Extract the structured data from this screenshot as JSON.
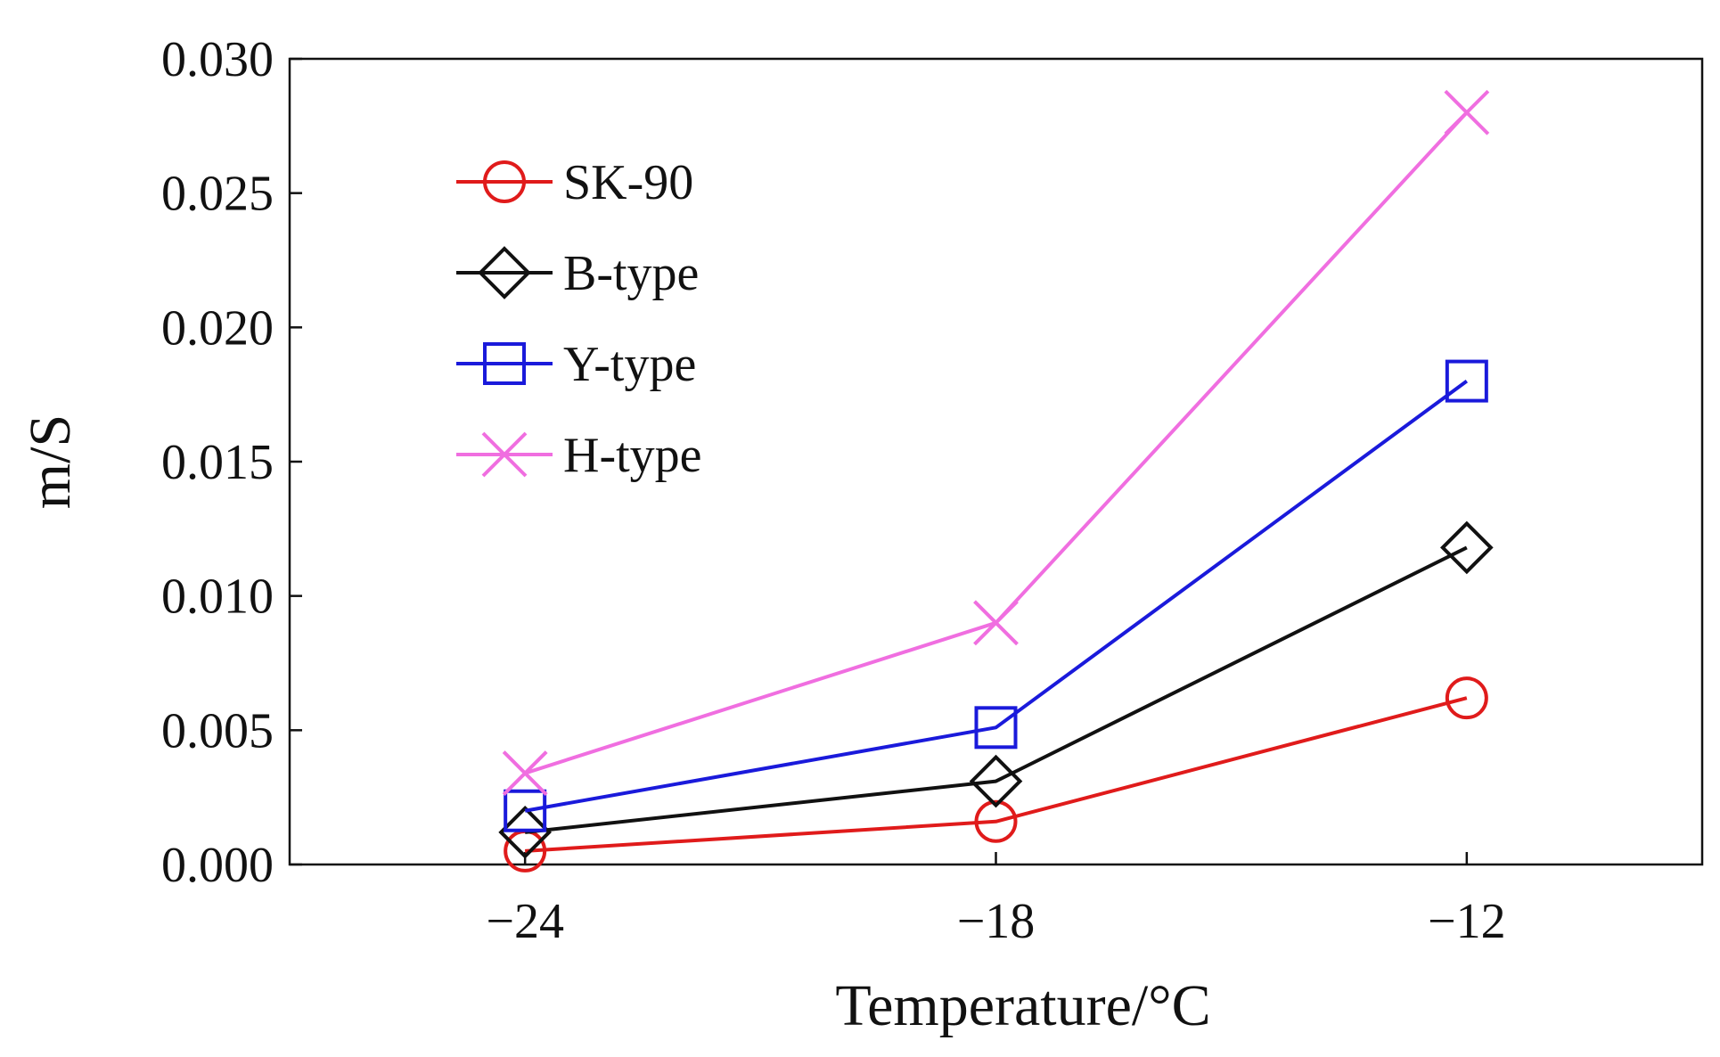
{
  "chart_data": {
    "type": "line",
    "title": "",
    "xlabel": "Temperature/°C",
    "ylabel": "m/S",
    "x": [
      -24,
      -18,
      -12
    ],
    "x_tick_labels": [
      "−24",
      "−18",
      "−12"
    ],
    "xlim": [
      -27,
      -9
    ],
    "ylim": [
      0,
      0.03
    ],
    "y_ticks": [
      0,
      0.005,
      0.01,
      0.015,
      0.02,
      0.025,
      0.03
    ],
    "y_tick_labels": [
      "0.000",
      "0.005",
      "0.010",
      "0.015",
      "0.020",
      "0.025",
      "0.030"
    ],
    "grid": false,
    "legend_position": "top-left",
    "series": [
      {
        "name": "SK-90",
        "color": "#e01b1b",
        "marker": "circle",
        "values": [
          0.0005,
          0.0016,
          0.0062
        ]
      },
      {
        "name": "B-type",
        "color": "#111111",
        "marker": "diamond",
        "values": [
          0.0012,
          0.0031,
          0.0118
        ]
      },
      {
        "name": "Y-type",
        "color": "#1a1adb",
        "marker": "square",
        "values": [
          0.002,
          0.0051,
          0.018
        ]
      },
      {
        "name": "H-type",
        "color": "#f06ee0",
        "marker": "x",
        "values": [
          0.0034,
          0.009,
          0.028
        ]
      }
    ]
  }
}
